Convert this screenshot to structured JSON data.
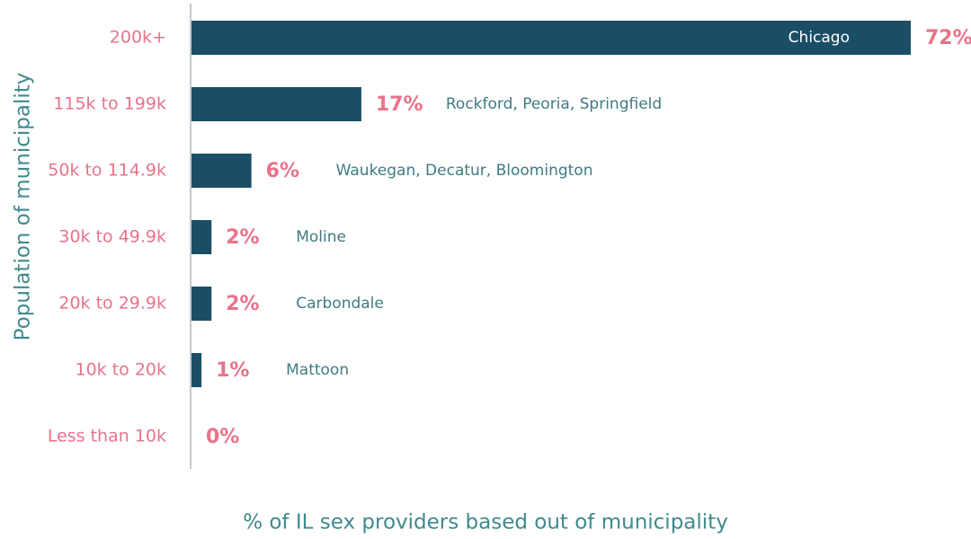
{
  "chart_data": {
    "type": "barh",
    "categories": [
      "200k+",
      "115k to 199k",
      "50k to 114.9k",
      "30k to 49.9k",
      "20k to 29.9k",
      "10k to 20k",
      "Less than 10k"
    ],
    "values": [
      72,
      17,
      6,
      2,
      2,
      1,
      0
    ],
    "value_labels": [
      "72%",
      "17%",
      "6%",
      "2%",
      "2%",
      "1%",
      "0%"
    ],
    "annotations": [
      "Chicago",
      "Rockford, Peoria, Springfield",
      "Waukegan, Decatur, Bloomington",
      "Moline",
      "Carbondale",
      "Mattoon",
      null
    ],
    "color": "#1b4e66",
    "xlabel": "% of IL sex providers based out of municipality",
    "ylabel": "Population of municipality"
  }
}
